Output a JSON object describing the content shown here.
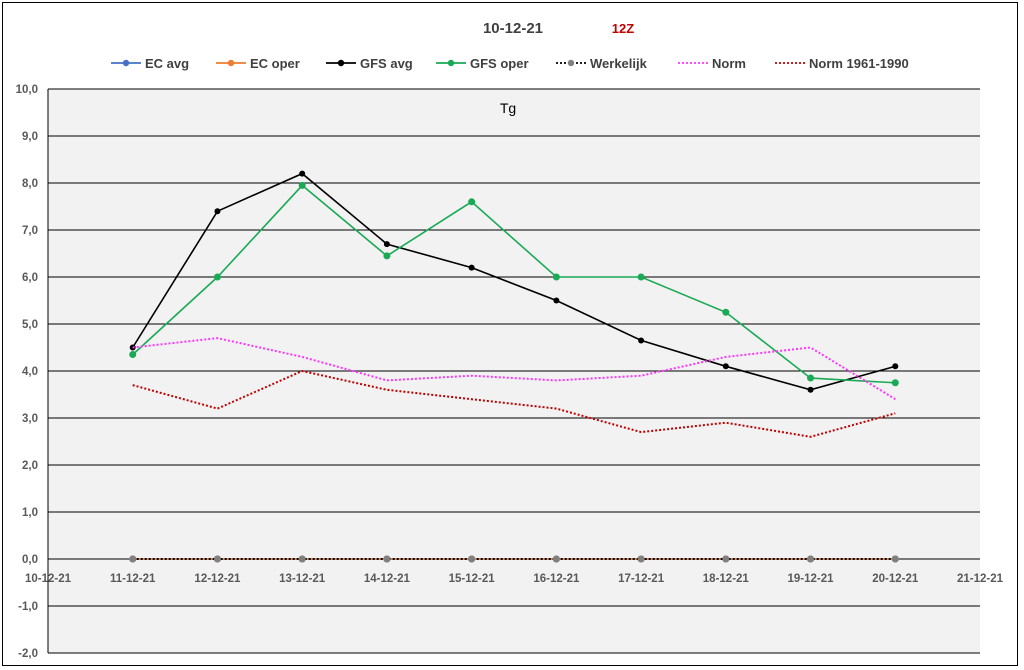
{
  "chart_data": {
    "type": "line",
    "title": "10-12-21",
    "subtitle": "12Z",
    "plot_label": "Tg",
    "xlabel": "",
    "ylabel": "",
    "x_categories": [
      "10-12-21",
      "11-12-21",
      "12-12-21",
      "13-12-21",
      "14-12-21",
      "15-12-21",
      "16-12-21",
      "17-12-21",
      "18-12-21",
      "19-12-21",
      "20-12-21",
      "21-12-21"
    ],
    "y_tick_labels": [
      "-2,0",
      "-1,0",
      "0,0",
      "1,0",
      "2,0",
      "3,0",
      "4,0",
      "5,0",
      "6,0",
      "7,0",
      "8,0",
      "9,0",
      "10,0"
    ],
    "ylim": [
      -2,
      10
    ],
    "ytick_step": 1,
    "grid": "horizontal",
    "legend_position": "top",
    "colors": {
      "plot_background": "#f2f2f2",
      "gridline": "#000000",
      "title": "#404040",
      "subtitle": "#c00000",
      "tick_text": "#595959"
    },
    "series": [
      {
        "name": "EC avg",
        "color": "#4472c4",
        "style": "solid",
        "marker": true,
        "x": [
          "11-12-21",
          "12-12-21",
          "13-12-21",
          "14-12-21",
          "15-12-21",
          "16-12-21",
          "17-12-21",
          "18-12-21",
          "19-12-21",
          "20-12-21"
        ],
        "values": [
          0,
          0,
          0,
          0,
          0,
          0,
          0,
          0,
          0,
          0
        ]
      },
      {
        "name": "EC oper",
        "color": "#ed7d31",
        "style": "solid",
        "marker": true,
        "x": [
          "11-12-21",
          "12-12-21",
          "13-12-21",
          "14-12-21",
          "15-12-21",
          "16-12-21",
          "17-12-21",
          "18-12-21",
          "19-12-21",
          "20-12-21"
        ],
        "values": [
          0,
          0,
          0,
          0,
          0,
          0,
          0,
          0,
          0,
          0
        ]
      },
      {
        "name": "GFS avg",
        "color": "#000000",
        "style": "solid",
        "marker": true,
        "x": [
          "11-12-21",
          "12-12-21",
          "13-12-21",
          "14-12-21",
          "15-12-21",
          "16-12-21",
          "17-12-21",
          "18-12-21",
          "19-12-21",
          "20-12-21"
        ],
        "values": [
          4.5,
          7.4,
          8.2,
          6.7,
          6.2,
          5.5,
          4.65,
          4.1,
          3.6,
          4.1
        ]
      },
      {
        "name": "GFS oper",
        "color": "#1aaa55",
        "style": "solid",
        "marker": true,
        "x": [
          "11-12-21",
          "12-12-21",
          "13-12-21",
          "14-12-21",
          "15-12-21",
          "16-12-21",
          "17-12-21",
          "18-12-21",
          "19-12-21",
          "20-12-21"
        ],
        "values": [
          4.35,
          6.0,
          7.95,
          6.45,
          7.6,
          6.0,
          6.0,
          5.25,
          3.85,
          3.75
        ]
      },
      {
        "name": "Werkelijk",
        "color": "#000000",
        "marker_color": "#808080",
        "style": "dotted",
        "marker": true,
        "x": [
          "11-12-21",
          "12-12-21",
          "13-12-21",
          "14-12-21",
          "15-12-21",
          "16-12-21",
          "17-12-21",
          "18-12-21",
          "19-12-21",
          "20-12-21"
        ],
        "values": [
          0,
          0,
          0,
          0,
          0,
          0,
          0,
          0,
          0,
          0
        ]
      },
      {
        "name": "Norm",
        "color": "#ff33ff",
        "style": "dotted",
        "marker": false,
        "x": [
          "11-12-21",
          "12-12-21",
          "13-12-21",
          "14-12-21",
          "15-12-21",
          "16-12-21",
          "17-12-21",
          "18-12-21",
          "19-12-21",
          "20-12-21"
        ],
        "values": [
          4.5,
          4.7,
          4.3,
          3.8,
          3.9,
          3.8,
          3.9,
          4.3,
          4.5,
          3.4
        ]
      },
      {
        "name": "Norm 1961-1990",
        "color": "#c00000",
        "style": "dotted",
        "marker": false,
        "x": [
          "11-12-21",
          "12-12-21",
          "13-12-21",
          "14-12-21",
          "15-12-21",
          "16-12-21",
          "17-12-21",
          "18-12-21",
          "19-12-21",
          "20-12-21"
        ],
        "values": [
          3.7,
          3.2,
          4.0,
          3.6,
          3.4,
          3.2,
          2.7,
          2.9,
          2.6,
          3.1
        ]
      }
    ]
  }
}
